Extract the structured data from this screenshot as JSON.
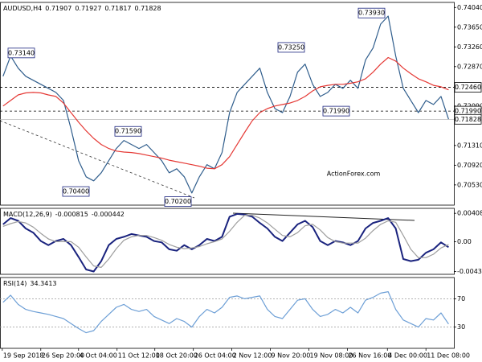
{
  "chart_data": [
    {
      "type": "line",
      "title": "AUDUSD,H4",
      "ohlc": [
        0.71907,
        0.71927,
        0.71817,
        0.71828
      ],
      "series": [
        {
          "color": "#2f5d8c",
          "values": [
            0.7268,
            0.7308,
            0.7284,
            0.7268,
            0.726,
            0.7252,
            0.7244,
            0.7236,
            0.722,
            0.7164,
            0.7101,
            0.7069,
            0.7061,
            0.7077,
            0.7101,
            0.7125,
            0.7141,
            0.7133,
            0.7125,
            0.7133,
            0.7117,
            0.7101,
            0.7077,
            0.7085,
            0.7069,
            0.7037,
            0.7069,
            0.7093,
            0.7085,
            0.7117,
            0.7196,
            0.7236,
            0.7252,
            0.7268,
            0.7284,
            0.7236,
            0.7204,
            0.7196,
            0.7228,
            0.7276,
            0.7292,
            0.7252,
            0.7228,
            0.7236,
            0.7252,
            0.7244,
            0.726,
            0.7244,
            0.73,
            0.7324,
            0.7371,
            0.7387,
            0.7308,
            0.7244,
            0.722,
            0.7196,
            0.722,
            0.7212,
            0.7228,
            0.7183
          ]
        },
        {
          "color": "#e53935",
          "values": [
            0.7209,
            0.722,
            0.7231,
            0.7235,
            0.7236,
            0.7235,
            0.7231,
            0.7228,
            0.7215,
            0.7196,
            0.7177,
            0.716,
            0.7145,
            0.7133,
            0.7125,
            0.712,
            0.7118,
            0.7117,
            0.7115,
            0.7112,
            0.7109,
            0.7106,
            0.7102,
            0.7099,
            0.7096,
            0.7093,
            0.709,
            0.7086,
            0.7085,
            0.7093,
            0.7109,
            0.7133,
            0.7157,
            0.718,
            0.7196,
            0.7204,
            0.7209,
            0.7212,
            0.7215,
            0.722,
            0.7228,
            0.7239,
            0.7247,
            0.725,
            0.7252,
            0.7252,
            0.7254,
            0.7257,
            0.7263,
            0.7276,
            0.7292,
            0.7305,
            0.7298,
            0.7284,
            0.7273,
            0.7263,
            0.7257,
            0.725,
            0.7247,
            0.7241
          ]
        }
      ],
      "xlim": [
        -0.4,
        59.7
      ],
      "ylim": [
        0.7013,
        0.7414
      ],
      "yticks": [
        {
          "value": 0.7404,
          "label": "0.74040"
        },
        {
          "value": 0.7365,
          "label": "0.73650"
        },
        {
          "value": 0.7326,
          "label": "0.73260"
        },
        {
          "value": 0.7287,
          "label": "0.72870"
        },
        {
          "value": 0.7209,
          "label": "0.72090"
        },
        {
          "value": 0.7131,
          "label": "0.71310"
        },
        {
          "value": 0.7092,
          "label": "0.70920"
        },
        {
          "value": 0.7053,
          "label": "0.70530"
        }
      ],
      "levels": [
        {
          "value": 0.7246,
          "label": "0.72460"
        },
        {
          "value": 0.7199,
          "label": "0.71990"
        }
      ],
      "last_price": {
        "value": 0.71828,
        "label": "0.71828"
      },
      "annotations": [
        {
          "value": 0.7314,
          "label": "0.73140"
        },
        {
          "value": 0.704,
          "label": "0.70400"
        },
        {
          "value": 0.7159,
          "label": "0.71590"
        },
        {
          "value": 0.702,
          "label": "0.70200"
        },
        {
          "value": 0.7325,
          "label": "0.73250"
        },
        {
          "value": 0.7199,
          "label": "0.71990"
        },
        {
          "value": 0.7393,
          "label": "0.73930"
        }
      ],
      "watermark": "ActionForex.com"
    },
    {
      "type": "line",
      "title": "MACD(12,26,9)",
      "readings": [
        -0.000815,
        -0.000442
      ],
      "series": [
        {
          "color": "#1a237e",
          "values": [
            0.0025,
            0.0034,
            0.003,
            0.0019,
            0.0013,
            0.0001,
            -0.0005,
            0.0001,
            0.0004,
            -0.0005,
            -0.0022,
            -0.004,
            -0.0043,
            -0.0028,
            -0.0005,
            0.0004,
            0.0007,
            0.0011,
            0.0009,
            0.0007,
            0.0001,
            -0.0001,
            -0.0011,
            -0.0013,
            -0.0005,
            -0.0011,
            -0.0005,
            0.0004,
            0.0001,
            0.0007,
            0.0036,
            0.004,
            0.0039,
            0.0036,
            0.0027,
            0.0019,
            0.0007,
            0.0001,
            0.0013,
            0.0025,
            0.003,
            0.0021,
            0.0001,
            -0.0005,
            0.0001,
            -0.0001,
            -0.0005,
            0.0001,
            0.0019,
            0.0027,
            0.003,
            0.0034,
            0.0019,
            -0.0025,
            -0.0028,
            -0.0026,
            -0.0016,
            -0.0011,
            -0.0001,
            -0.0008
          ]
        },
        {
          "color": "#9e9e9e",
          "values": [
            0.0022,
            0.0026,
            0.0029,
            0.0027,
            0.0021,
            0.0012,
            0.0004,
            0.0,
            0.0,
            0.0,
            -0.0008,
            -0.0022,
            -0.0035,
            -0.0037,
            -0.0025,
            -0.001,
            0.0002,
            0.0007,
            0.0009,
            0.0009,
            0.0006,
            0.0002,
            -0.0004,
            -0.0008,
            -0.001,
            -0.0009,
            -0.0007,
            -0.0003,
            0.0,
            0.0004,
            0.0015,
            0.0028,
            0.0038,
            0.0038,
            0.0034,
            0.0027,
            0.0018,
            0.0009,
            0.0007,
            0.0013,
            0.0023,
            0.0025,
            0.0017,
            0.0006,
            0.0,
            -0.0002,
            -0.0002,
            -0.0002,
            0.0005,
            0.0016,
            0.0025,
            0.003,
            0.0028,
            0.0009,
            -0.0011,
            -0.0023,
            -0.0023,
            -0.0018,
            -0.0009,
            -0.0004
          ]
        }
      ],
      "xlim": [
        -0.4,
        59.7
      ],
      "ylim": [
        -0.0047,
        0.0048
      ],
      "yticks": [
        0.004085,
        {
          "value": 0,
          "label": "0.00"
        },
        -0.0043
      ]
    },
    {
      "type": "line",
      "title": "RSI(14)",
      "readings": [
        34.3413
      ],
      "series": [
        {
          "color": "#6d9fd6",
          "values": [
            65,
            75,
            62,
            55,
            52,
            50,
            48,
            45,
            42,
            35,
            28,
            22,
            25,
            38,
            48,
            58,
            62,
            55,
            52,
            55,
            45,
            40,
            35,
            42,
            38,
            30,
            45,
            55,
            50,
            58,
            72,
            74,
            70,
            72,
            74,
            55,
            45,
            42,
            55,
            68,
            70,
            55,
            45,
            48,
            55,
            50,
            58,
            50,
            68,
            72,
            78,
            80,
            55,
            40,
            35,
            30,
            42,
            40,
            50,
            34.3413
          ]
        }
      ],
      "xlim": [
        -0.4,
        59.7
      ],
      "ylim": [
        0,
        100
      ],
      "yticks": [
        30,
        70
      ],
      "grid": true,
      "xticks": [
        {
          "value": -0.1,
          "label": "19 Sep 2018"
        },
        {
          "value": 5,
          "label": "26 Sep 20:00"
        },
        {
          "value": 10,
          "label": "4 Oct 04:00"
        },
        {
          "value": 15.1,
          "label": "11 Oct 12:00"
        },
        {
          "value": 20.1,
          "label": "18 Oct 20:00"
        },
        {
          "value": 25.2,
          "label": "26 Oct 04:00"
        },
        {
          "value": 30.3,
          "label": "2 Nov 12:00"
        },
        {
          "value": 35.4,
          "label": "9 Nov 20:00"
        },
        {
          "value": 40.5,
          "label": "19 Nov 08:00"
        },
        {
          "value": 45.6,
          "label": "26 Nov 16:00"
        },
        {
          "value": 50.9,
          "label": "4 Dec 00:00"
        },
        {
          "value": 56,
          "label": "11 Dec 08:00"
        }
      ]
    }
  ]
}
